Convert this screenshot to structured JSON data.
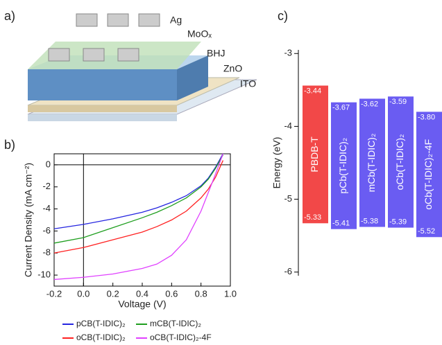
{
  "schematic": {
    "panel_label": "a)",
    "layers": [
      "Ag",
      "MoOₓ",
      "BHJ",
      "ZnO",
      "ITO"
    ]
  },
  "chart_data": [
    {
      "type": "line",
      "panel_label": "b)",
      "x_label": "Voltage (V)",
      "y_label": "Current Density (mA cm⁻²)",
      "x": [
        -0.2,
        0,
        0.2,
        0.4,
        0.5,
        0.6,
        0.7,
        0.8,
        0.85,
        0.9,
        0.95
      ],
      "series": [
        {
          "name": "pCB(T-IDIC)₂",
          "color": "#2424e0",
          "values": [
            -5.8,
            -5.4,
            -4.9,
            -4.3,
            -3.9,
            -3.4,
            -2.8,
            -1.9,
            -1.2,
            -0.2,
            1.0
          ]
        },
        {
          "name": "mCB(T-IDIC)₂",
          "color": "#1e9e1e",
          "values": [
            -7.1,
            -6.6,
            -5.7,
            -4.8,
            -4.3,
            -3.7,
            -3.0,
            -2.0,
            -1.3,
            -0.3,
            0.9
          ]
        },
        {
          "name": "oCB(T-IDIC)₂",
          "color": "#ff2020",
          "values": [
            -8.0,
            -7.5,
            -6.8,
            -6.1,
            -5.6,
            -5.0,
            -4.2,
            -3.0,
            -2.2,
            -1.1,
            0.4
          ]
        },
        {
          "name": "oCB(T-IDIC)₂-4F",
          "color": "#e040ff",
          "values": [
            -10.4,
            -10.2,
            -9.9,
            -9.4,
            -9.0,
            -8.2,
            -6.8,
            -4.2,
            -2.5,
            -0.8,
            1.0
          ]
        }
      ],
      "xlim": [
        -0.2,
        1.0
      ],
      "xticks": [
        {
          "value": -0.2,
          "label": "-0.2"
        },
        {
          "value": 0,
          "label": "0.0"
        },
        {
          "value": 0.2,
          "label": "0.2"
        },
        {
          "value": 0.4,
          "label": "0.4"
        },
        {
          "value": 0.6,
          "label": "0.6"
        },
        {
          "value": 0.8,
          "label": "0.8"
        },
        {
          "value": 1.0,
          "label": "1.0"
        }
      ],
      "ylim": [
        -11,
        1
      ],
      "yticks": [
        -10,
        -8,
        -6,
        -4,
        -2,
        0
      ]
    },
    {
      "type": "floating_bar",
      "panel_label": "c)",
      "y_label": "Energy (eV)",
      "categories": [
        "PBDB-T",
        "pCb(T-IDIC)₂",
        "mCb(T-IDIC)₂",
        "oCb(T-IDIC)₂",
        "oCb(T-IDIC)₂-4F"
      ],
      "ranges": [
        [
          -3.44,
          -5.33
        ],
        [
          -3.67,
          -5.41
        ],
        [
          -3.62,
          -5.38
        ],
        [
          -3.59,
          -5.39
        ],
        [
          -3.8,
          -5.52
        ]
      ],
      "value_labels": [
        [
          "-3.44",
          "-5.33"
        ],
        [
          "-3.67",
          "-5.41"
        ],
        [
          "-3.62",
          "-5.38"
        ],
        [
          "-3.59",
          "-5.39"
        ],
        [
          "-3.80",
          "-5.52"
        ]
      ],
      "colors": [
        "#f24848",
        "#6a5cf2",
        "#6a5cf2",
        "#6a5cf2",
        "#6a5cf2"
      ],
      "ylim": [
        -6.05,
        -2.95
      ],
      "yticks": [
        -3,
        -4,
        -5,
        -6
      ]
    }
  ]
}
